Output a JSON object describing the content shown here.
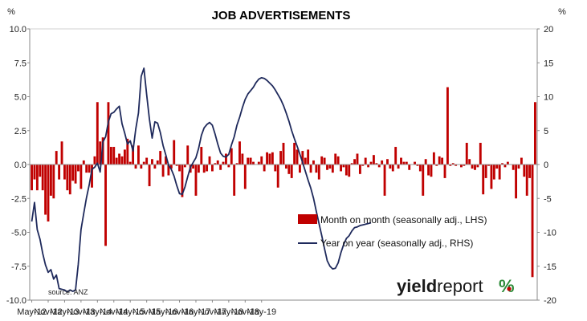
{
  "chart_data": {
    "type": "bar+line",
    "title": "JOB ADVERTISEMENTS",
    "left_unit": "%",
    "right_unit": "%",
    "source": "source: ANZ",
    "logo": "yieldreport%",
    "x_tick_labels": [
      "May-12",
      "Nov-12",
      "May-13",
      "Nov-13",
      "May-14",
      "Nov-14",
      "May-15",
      "Nov-15",
      "May-16",
      "Nov-16",
      "May-17",
      "Nov-17",
      "May-18",
      "Nov-18",
      "May-19"
    ],
    "y_left": {
      "min": -10,
      "max": 10,
      "ticks": [
        "10.0",
        "7.5",
        "5.0",
        "2.5",
        "0.0",
        "-2.5",
        "-5.0",
        "-7.5",
        "-10.0"
      ]
    },
    "y_right": {
      "min": -20,
      "max": 20,
      "ticks": [
        "20",
        "15",
        "10",
        "5",
        "0",
        "-5",
        "-10",
        "-15",
        "-20"
      ]
    },
    "grid": false,
    "legend_position": "bottom-right",
    "series": [
      {
        "name": "Month on month (seasonally adj., LHS)",
        "type": "bar",
        "axis": "left",
        "color": "#c00000",
        "start": "2012-05",
        "values": [
          -1.9,
          -1.1,
          -1.9,
          -0.9,
          -1.9,
          -3.7,
          -4.2,
          -2.3,
          -2.5,
          1.0,
          -1.1,
          1.7,
          -1.1,
          -1.9,
          -2.2,
          -1.2,
          -1.4,
          -0.5,
          -1.8,
          0.3,
          -0.6,
          -0.6,
          -1.7,
          0.6,
          4.6,
          1.7,
          2.0,
          -6.0,
          4.6,
          1.3,
          1.3,
          0.5,
          0.8,
          0.6,
          1.1,
          1.9,
          0.2,
          1.4,
          -0.3,
          1.4,
          -0.3,
          0.2,
          0.5,
          -1.6,
          0.4,
          -0.3,
          0.3,
          1.0,
          -0.9,
          0.6,
          -0.8,
          -0.3,
          1.8,
          -0.1,
          -0.5,
          -2.4,
          -0.2,
          1.4,
          -0.6,
          -0.3,
          -2.3,
          -0.6,
          1.3,
          -0.6,
          -0.5,
          0.6,
          -0.5,
          0.1,
          0.3,
          -0.4,
          0.2,
          0.8,
          -0.2,
          1.2,
          -2.3,
          0.1,
          1.7,
          0.8,
          -1.8,
          0.5,
          0.5,
          0.2,
          0.0,
          0.2,
          0.6,
          -0.5,
          0.9,
          0.8,
          0.9,
          -0.5,
          -1.7,
          1.0,
          1.6,
          -0.3,
          -0.7,
          -1.0,
          1.6,
          1.1,
          -0.6,
          1.0,
          0.5,
          1.1,
          -0.6,
          0.3,
          -0.6,
          -1.1,
          0.6,
          0.5,
          -0.4,
          -0.3,
          -0.6,
          0.8,
          0.6,
          -0.5,
          -0.2,
          -0.8,
          -0.9,
          0.1,
          0.4,
          0.8,
          -0.7,
          -0.1,
          0.5,
          -0.2,
          0.2,
          0.7,
          0.1,
          -0.2,
          0.3,
          -2.3,
          0.4,
          -0.3,
          -0.5,
          1.3,
          -0.3,
          0.5,
          0.2,
          0.2,
          -0.4,
          0.0,
          0.2,
          -0.1,
          -0.5,
          -2.3,
          0.4,
          -0.8,
          -0.9,
          0.9,
          -0.1,
          0.6,
          0.5,
          -1.0,
          5.7,
          -0.1,
          0.1,
          -0.1,
          0.0,
          -0.2,
          -0.1,
          1.6,
          0.4,
          -0.3,
          -0.4,
          -0.2,
          1.6,
          -2.2,
          -1.0,
          -0.1,
          -1.8,
          -1.1,
          -0.3,
          -1.1,
          0.1,
          -0.2,
          0.2,
          0.0,
          -0.4,
          -2.5,
          -0.3,
          0.5,
          -0.9,
          -2.3,
          -1.0,
          -8.3,
          4.6
        ]
      },
      {
        "name": "Year on year (seasonally adj., RHS)",
        "type": "line",
        "axis": "right",
        "color": "#1f2a5c",
        "start": "2012-05",
        "values": [
          -8.4,
          -5.6,
          -9.6,
          -11.0,
          -13.1,
          -14.8,
          -15.9,
          -15.5,
          -16.9,
          -16.3,
          -18.3,
          -18.4,
          -18.5,
          -18.8,
          -18.5,
          -18.7,
          -18.5,
          -14.7,
          -9.6,
          -7.2,
          -4.9,
          -3.0,
          -0.7,
          -0.4,
          0.2,
          -1.1,
          3.3,
          4.1,
          6.3,
          7.5,
          7.7,
          8.2,
          8.6,
          6.0,
          4.6,
          3.0,
          3.5,
          2.0,
          5.2,
          7.6,
          13.0,
          14.2,
          10.3,
          6.7,
          3.9,
          6.3,
          6.1,
          4.7,
          2.8,
          1.4,
          -0.1,
          -0.7,
          -1.7,
          -3.1,
          -4.3,
          -4.4,
          -3.3,
          -1.8,
          -0.4,
          0.3,
          1.0,
          2.4,
          4.3,
          5.4,
          5.9,
          6.2,
          5.8,
          4.5,
          3.0,
          1.7,
          1.2,
          1.1,
          1.5,
          2.9,
          4.1,
          5.8,
          7.0,
          8.4,
          9.6,
          10.4,
          10.9,
          11.4,
          12.1,
          12.6,
          12.8,
          12.7,
          12.4,
          12.0,
          11.6,
          11.0,
          10.3,
          9.6,
          8.7,
          7.6,
          6.4,
          5.0,
          3.8,
          2.7,
          1.5,
          0.3,
          -1.0,
          -2.3,
          -3.5,
          -5.0,
          -6.9,
          -8.7,
          -10.5,
          -12.4,
          -14.2,
          -15.0,
          -15.4,
          -15.3,
          -14.5,
          -13.0,
          -11.8,
          -10.9,
          -10.5,
          -9.8,
          -9.3,
          -9.2,
          -9.0,
          -8.9,
          -8.8,
          -8.7,
          -8.6
        ]
      }
    ]
  }
}
